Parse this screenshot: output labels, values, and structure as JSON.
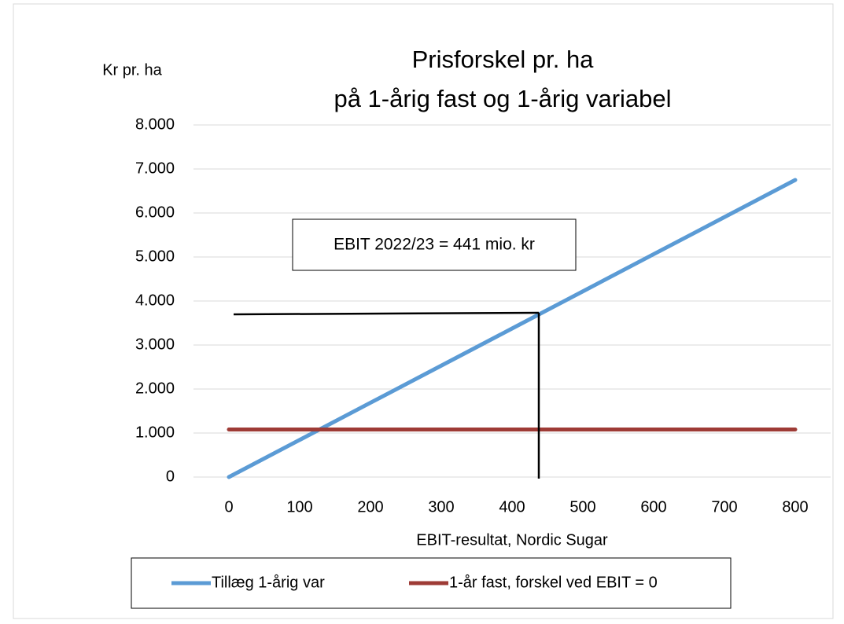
{
  "chart_data": {
    "type": "line",
    "title": "Prisforskel pr. ha",
    "subtitle": "på 1-årig fast og 1-årig variabel",
    "y_label": "Kr pr. ha",
    "x_label": "EBIT-resultat, Nordic Sugar",
    "annotation": "EBIT 2022/23 = 441 mio. kr",
    "categories": [
      "0",
      "100",
      "200",
      "300",
      "400",
      "500",
      "600",
      "700",
      "800"
    ],
    "series": [
      {
        "name": "Tillæg 1-årig var",
        "color": "#5b9bd5",
        "values": [
          0,
          844,
          1688,
          2531,
          3375,
          4219,
          5063,
          5906,
          6750
        ]
      },
      {
        "name": "1-år fast, forskel ved EBIT = 0",
        "color": "#9e3b36",
        "values": [
          1080,
          1080,
          1080,
          1080,
          1080,
          1080,
          1080,
          1080,
          1080
        ]
      }
    ],
    "ylim": [
      0,
      8000
    ],
    "yticks": [
      0,
      {
        "value": 1000,
        "label": "1.000"
      },
      {
        "value": 2000,
        "label": "2.000"
      },
      {
        "value": 3000,
        "label": "3.000"
      },
      {
        "value": 4000,
        "label": "4.000"
      },
      {
        "value": 5000,
        "label": "5.000"
      },
      {
        "value": 6000,
        "label": "6.000"
      },
      {
        "value": 7000,
        "label": "7.000"
      },
      {
        "value": 8000,
        "label": "8.000"
      }
    ],
    "grid": true,
    "legend": "bottom"
  }
}
